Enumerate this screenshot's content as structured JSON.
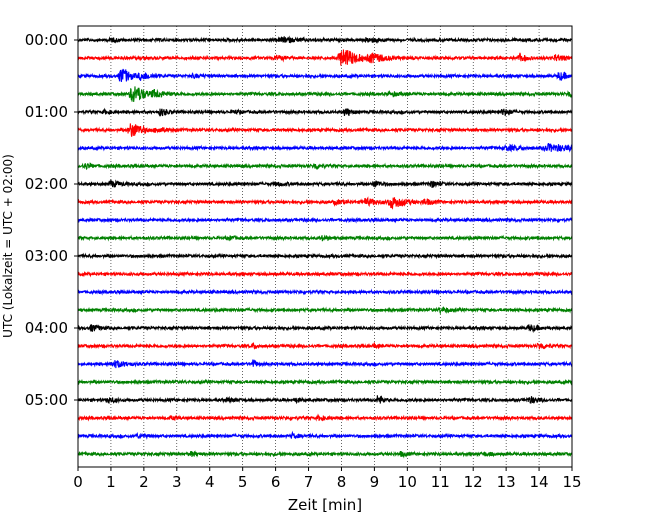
{
  "chart_data": {
    "type": "line",
    "xlabel": "Zeit  [min]",
    "ylabel": "UTC (Lokalzeit = UTC + 02:00)",
    "xlim": [
      0,
      15
    ],
    "x_ticks": [
      "0",
      "1",
      "2",
      "3",
      "4",
      "5",
      "6",
      "7",
      "8",
      "9",
      "10",
      "11",
      "12",
      "13",
      "14",
      "15"
    ],
    "y_tick_labels": [
      "00:00",
      "01:00",
      "02:00",
      "03:00",
      "04:00",
      "05:00"
    ],
    "grid": "vertical-dotted",
    "colors": [
      "#000000",
      "#ff0000",
      "#0000ff",
      "#008000"
    ],
    "traces": [
      {
        "start": "00:00",
        "color": "#000000",
        "bursts": [
          [
            6.2,
            0.6,
            2.0
          ],
          [
            8.8,
            0.5,
            1.8
          ],
          [
            1.0,
            0.3,
            1.4
          ]
        ]
      },
      {
        "start": "00:15",
        "color": "#ff0000",
        "bursts": [
          [
            8.0,
            0.6,
            9.0
          ],
          [
            8.9,
            0.6,
            4.0
          ],
          [
            13.4,
            0.3,
            3.0
          ],
          [
            14.5,
            0.3,
            3.0
          ],
          [
            6.0,
            0.5,
            1.5
          ]
        ]
      },
      {
        "start": "00:30",
        "color": "#0000ff",
        "bursts": [
          [
            1.3,
            0.35,
            8.0
          ],
          [
            1.9,
            0.4,
            3.5
          ],
          [
            14.6,
            0.3,
            4.0
          ],
          [
            3.5,
            0.3,
            1.5
          ]
        ]
      },
      {
        "start": "00:45",
        "color": "#008000",
        "bursts": [
          [
            1.65,
            0.45,
            9.0
          ],
          [
            2.3,
            0.5,
            3.0
          ],
          [
            14.9,
            0.2,
            3.0
          ],
          [
            9.5,
            0.4,
            1.5
          ]
        ]
      },
      {
        "start": "01:00",
        "color": "#000000",
        "bursts": [
          [
            2.5,
            0.25,
            3.5
          ],
          [
            8.1,
            0.25,
            4.0
          ],
          [
            12.9,
            0.25,
            3.0
          ],
          [
            4.7,
            0.3,
            1.6
          ],
          [
            0.8,
            0.3,
            1.6
          ]
        ]
      },
      {
        "start": "01:15",
        "color": "#ff0000",
        "bursts": [
          [
            1.6,
            0.45,
            7.0
          ],
          [
            2.4,
            0.5,
            2.0
          ]
        ]
      },
      {
        "start": "01:30",
        "color": "#0000ff",
        "bursts": [
          [
            14.3,
            0.8,
            3.5
          ],
          [
            13.0,
            0.6,
            2.2
          ]
        ]
      },
      {
        "start": "01:45",
        "color": "#008000",
        "bursts": [
          [
            0.2,
            0.3,
            2.5
          ],
          [
            7.2,
            0.2,
            3.0
          ]
        ]
      },
      {
        "start": "02:00",
        "color": "#000000",
        "bursts": [
          [
            1.0,
            0.4,
            2.5
          ],
          [
            9.0,
            0.3,
            3.0
          ],
          [
            10.7,
            0.3,
            3.0
          ],
          [
            6.0,
            0.4,
            1.4
          ]
        ]
      },
      {
        "start": "02:15",
        "color": "#ff0000",
        "bursts": [
          [
            9.5,
            0.55,
            5.5
          ],
          [
            8.7,
            0.5,
            3.0
          ],
          [
            10.5,
            0.4,
            2.5
          ],
          [
            7.8,
            0.4,
            1.8
          ]
        ]
      },
      {
        "start": "02:30",
        "color": "#0000ff",
        "bursts": []
      },
      {
        "start": "02:45",
        "color": "#008000",
        "bursts": [
          [
            7.4,
            0.3,
            2.0
          ],
          [
            4.6,
            0.2,
            1.6
          ]
        ]
      },
      {
        "start": "03:00",
        "color": "#000000",
        "bursts": []
      },
      {
        "start": "03:15",
        "color": "#ff0000",
        "bursts": []
      },
      {
        "start": "03:30",
        "color": "#0000ff",
        "bursts": []
      },
      {
        "start": "03:45",
        "color": "#008000",
        "bursts": [
          [
            11.0,
            0.35,
            2.2
          ]
        ]
      },
      {
        "start": "04:00",
        "color": "#000000",
        "bursts": [
          [
            0.4,
            0.3,
            3.0
          ],
          [
            13.7,
            0.35,
            3.0
          ]
        ]
      },
      {
        "start": "04:15",
        "color": "#ff0000",
        "bursts": [
          [
            14.0,
            0.3,
            3.0
          ],
          [
            5.3,
            0.15,
            2.5
          ],
          [
            9.0,
            0.2,
            1.6
          ]
        ]
      },
      {
        "start": "04:30",
        "color": "#0000ff",
        "bursts": [
          [
            1.1,
            0.45,
            3.0
          ],
          [
            5.3,
            0.15,
            4.0
          ]
        ]
      },
      {
        "start": "04:45",
        "color": "#008000",
        "bursts": []
      },
      {
        "start": "05:00",
        "color": "#000000",
        "bursts": [
          [
            9.1,
            0.2,
            5.0
          ],
          [
            0.9,
            0.3,
            2.5
          ],
          [
            13.7,
            0.35,
            3.0
          ],
          [
            6.6,
            0.2,
            2.0
          ],
          [
            4.5,
            0.4,
            1.4
          ]
        ]
      },
      {
        "start": "05:15",
        "color": "#ff0000",
        "bursts": [
          [
            7.3,
            0.3,
            2.0
          ],
          [
            2.8,
            0.3,
            1.4
          ]
        ]
      },
      {
        "start": "05:30",
        "color": "#0000ff",
        "bursts": [
          [
            6.5,
            0.25,
            2.2
          ],
          [
            1.8,
            0.4,
            1.4
          ]
        ]
      },
      {
        "start": "05:45",
        "color": "#008000",
        "bursts": [
          [
            3.4,
            0.3,
            2.0
          ],
          [
            9.8,
            0.2,
            2.0
          ],
          [
            12.3,
            0.3,
            1.6
          ]
        ]
      }
    ]
  }
}
